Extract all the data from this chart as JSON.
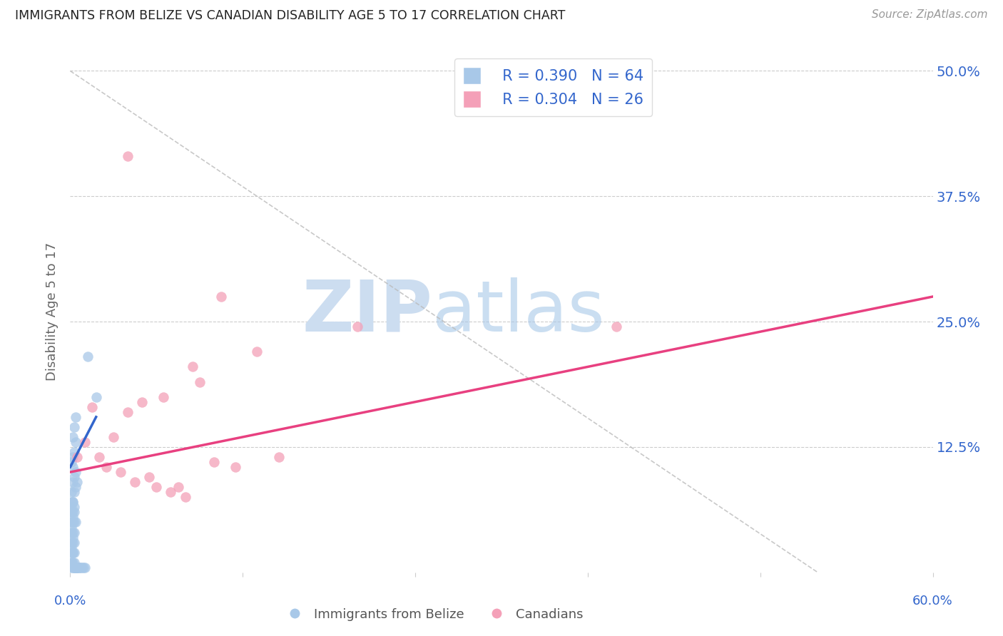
{
  "title": "IMMIGRANTS FROM BELIZE VS CANADIAN DISABILITY AGE 5 TO 17 CORRELATION CHART",
  "source": "Source: ZipAtlas.com",
  "ylabel": "Disability Age 5 to 17",
  "legend_blue_R": "R = 0.390",
  "legend_blue_N": "N = 64",
  "legend_pink_R": "R = 0.304",
  "legend_pink_N": "N = 26",
  "legend_label_blue": "Immigrants from Belize",
  "legend_label_pink": "Canadians",
  "blue_color": "#a8c8e8",
  "pink_color": "#f4a0b8",
  "blue_line_color": "#3366cc",
  "pink_line_color": "#e84080",
  "dashed_line_color": "#bbbbbb",
  "xlim": [
    0.0,
    0.6
  ],
  "ylim": [
    0.0,
    0.52
  ],
  "yticks": [
    0.0,
    0.125,
    0.25,
    0.375,
    0.5
  ],
  "ytick_labels": [
    "",
    "12.5%",
    "25.0%",
    "37.5%",
    "50.0%"
  ],
  "xtick_labels_show": [
    "0.0%",
    "60.0%"
  ],
  "blue_scatter_x": [
    0.001,
    0.002,
    0.001,
    0.003,
    0.002,
    0.001,
    0.003,
    0.002,
    0.004,
    0.003,
    0.002,
    0.001,
    0.003,
    0.002,
    0.001,
    0.002,
    0.001,
    0.003,
    0.002,
    0.001,
    0.002,
    0.003,
    0.001,
    0.002,
    0.001,
    0.003,
    0.002,
    0.001,
    0.002,
    0.001,
    0.004,
    0.003,
    0.005,
    0.004,
    0.003,
    0.002,
    0.001,
    0.005,
    0.004,
    0.003,
    0.006,
    0.005,
    0.004,
    0.003,
    0.002,
    0.001,
    0.004,
    0.003,
    0.002,
    0.001,
    0.002,
    0.003,
    0.004,
    0.005,
    0.006,
    0.007,
    0.008,
    0.009,
    0.01,
    0.004,
    0.003,
    0.002,
    0.018,
    0.012
  ],
  "blue_scatter_y": [
    0.07,
    0.07,
    0.06,
    0.06,
    0.06,
    0.05,
    0.05,
    0.05,
    0.05,
    0.04,
    0.04,
    0.04,
    0.03,
    0.03,
    0.03,
    0.02,
    0.02,
    0.02,
    0.02,
    0.01,
    0.09,
    0.08,
    0.08,
    0.07,
    0.065,
    0.065,
    0.055,
    0.045,
    0.035,
    0.025,
    0.1,
    0.095,
    0.09,
    0.085,
    0.01,
    0.01,
    0.01,
    0.005,
    0.005,
    0.005,
    0.005,
    0.005,
    0.005,
    0.005,
    0.005,
    0.005,
    0.13,
    0.12,
    0.115,
    0.11,
    0.105,
    0.005,
    0.005,
    0.005,
    0.005,
    0.005,
    0.005,
    0.005,
    0.005,
    0.155,
    0.145,
    0.135,
    0.175,
    0.215
  ],
  "pink_scatter_x": [
    0.005,
    0.01,
    0.015,
    0.02,
    0.025,
    0.03,
    0.035,
    0.04,
    0.04,
    0.045,
    0.05,
    0.055,
    0.06,
    0.065,
    0.07,
    0.075,
    0.08,
    0.085,
    0.09,
    0.1,
    0.105,
    0.115,
    0.13,
    0.145,
    0.2,
    0.38
  ],
  "pink_scatter_y": [
    0.115,
    0.13,
    0.165,
    0.115,
    0.105,
    0.135,
    0.1,
    0.415,
    0.16,
    0.09,
    0.17,
    0.095,
    0.085,
    0.175,
    0.08,
    0.085,
    0.075,
    0.205,
    0.19,
    0.11,
    0.275,
    0.105,
    0.22,
    0.115,
    0.245,
    0.245
  ],
  "blue_line_x": [
    0.0,
    0.018
  ],
  "blue_line_y": [
    0.105,
    0.155
  ],
  "pink_line_x": [
    0.0,
    0.6
  ],
  "pink_line_y": [
    0.1,
    0.275
  ],
  "dashed_line_x": [
    0.0,
    0.52
  ],
  "dashed_line_y": [
    0.5,
    0.0
  ]
}
